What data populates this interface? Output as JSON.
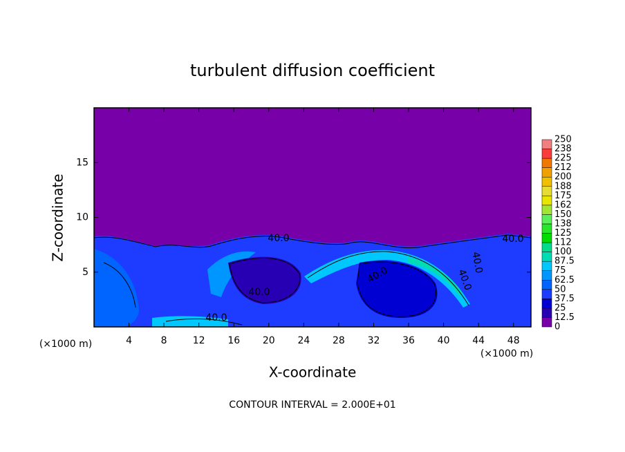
{
  "chart_data": {
    "type": "contour",
    "title": "turbulent diffusion coefficient",
    "x_label": "X-coordinate",
    "y_label": "Z-coordinate",
    "x_unit_labels": [
      "(×1000 m)",
      "(×1000 m)"
    ],
    "xlim": [
      0,
      50
    ],
    "xticks": [
      4,
      8,
      12,
      16,
      20,
      24,
      28,
      32,
      36,
      40,
      44,
      48
    ],
    "ylim": [
      0,
      20
    ],
    "yticks": [
      5,
      10,
      15
    ],
    "colorbar": {
      "levels": [
        0,
        12.5,
        25,
        37.5,
        50,
        62.5,
        75,
        87.5,
        100,
        112,
        125,
        138,
        150,
        162,
        175,
        188,
        200,
        212,
        225,
        238,
        250
      ],
      "colors": [
        "#7800a8",
        "#2800b4",
        "#0000d2",
        "#1e3cff",
        "#0064ff",
        "#0096ff",
        "#00c8ff",
        "#00dcb4",
        "#00dc8c",
        "#00dc00",
        "#28e628",
        "#5af05a",
        "#a0e632",
        "#e6e600",
        "#e6dc32",
        "#f0c000",
        "#f0a000",
        "#f07800",
        "#fa3c3c",
        "#f08080"
      ]
    },
    "contour_labels": [
      "40.0",
      "40.0",
      "40.0",
      "40.0",
      "40.0",
      "40.0",
      "40.0"
    ],
    "footnote": "CONTOUR INTERVAL = 2.000E+01"
  }
}
